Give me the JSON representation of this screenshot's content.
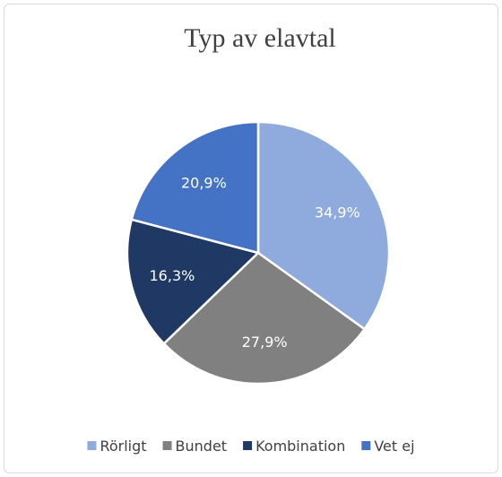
{
  "chart_data": {
    "type": "pie",
    "title": "Typ av elavtal",
    "categories": [
      "Rörligt",
      "Bundet",
      "Kombination",
      "Vet ej"
    ],
    "values": [
      34.9,
      27.9,
      16.3,
      20.9
    ],
    "value_labels": [
      "34,9%",
      "27,9%",
      "16,3%",
      "20,9%"
    ],
    "colors": [
      "#8faadc",
      "#808080",
      "#1f3864",
      "#4472c4"
    ],
    "legend": "bottom"
  }
}
